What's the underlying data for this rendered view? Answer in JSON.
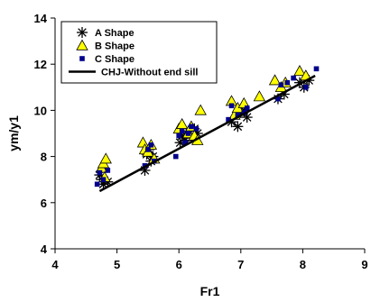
{
  "chart_data": {
    "type": "scatter",
    "xlabel": "Fr1",
    "ylabel": "ym/y1",
    "xlim": [
      4,
      9
    ],
    "ylim": [
      4,
      14
    ],
    "xticks": [
      4,
      5,
      6,
      7,
      8,
      9
    ],
    "yticks": [
      4,
      6,
      8,
      10,
      12,
      14
    ],
    "grid": false,
    "legend_position": "top-left",
    "series": [
      {
        "name": "A Shape",
        "marker": "asterisk",
        "color": "#000000",
        "points": [
          [
            4.72,
            7.2
          ],
          [
            4.75,
            7.0
          ],
          [
            4.78,
            6.8
          ],
          [
            4.85,
            6.9
          ],
          [
            5.45,
            7.4
          ],
          [
            5.48,
            8.1
          ],
          [
            5.52,
            8.3
          ],
          [
            5.55,
            7.8
          ],
          [
            5.58,
            8.0
          ],
          [
            6.02,
            8.6
          ],
          [
            6.05,
            8.9
          ],
          [
            6.1,
            8.7
          ],
          [
            6.15,
            9.1
          ],
          [
            6.2,
            8.8
          ],
          [
            6.25,
            9.2
          ],
          [
            6.3,
            9.0
          ],
          [
            6.85,
            9.5
          ],
          [
            6.95,
            9.3
          ],
          [
            7.0,
            9.9
          ],
          [
            7.05,
            10.0
          ],
          [
            7.1,
            9.7
          ],
          [
            7.6,
            10.5
          ],
          [
            7.7,
            10.7
          ],
          [
            7.95,
            11.2
          ],
          [
            8.02,
            11.0
          ],
          [
            8.1,
            11.3
          ]
        ]
      },
      {
        "name": "B Shape",
        "marker": "triangle",
        "color": "#ffff00",
        "points": [
          [
            4.75,
            7.5
          ],
          [
            4.78,
            7.7
          ],
          [
            4.82,
            7.9
          ],
          [
            4.8,
            7.1
          ],
          [
            5.42,
            8.6
          ],
          [
            5.45,
            8.3
          ],
          [
            5.5,
            8.2
          ],
          [
            5.55,
            8.5
          ],
          [
            5.6,
            7.9
          ],
          [
            6.0,
            9.2
          ],
          [
            6.05,
            9.4
          ],
          [
            6.15,
            9.0
          ],
          [
            6.2,
            9.3
          ],
          [
            6.25,
            8.9
          ],
          [
            6.3,
            8.7
          ],
          [
            6.35,
            10.0
          ],
          [
            6.85,
            10.4
          ],
          [
            6.9,
            9.8
          ],
          [
            6.95,
            10.1
          ],
          [
            7.05,
            10.3
          ],
          [
            7.3,
            10.6
          ],
          [
            7.55,
            11.3
          ],
          [
            7.65,
            11.0
          ],
          [
            7.72,
            11.2
          ],
          [
            7.95,
            11.7
          ],
          [
            8.05,
            11.5
          ]
        ]
      },
      {
        "name": "C Shape",
        "marker": "square",
        "color": "#00008b",
        "points": [
          [
            4.68,
            6.8
          ],
          [
            4.72,
            7.3
          ],
          [
            4.78,
            7.0
          ],
          [
            4.85,
            7.4
          ],
          [
            5.45,
            7.6
          ],
          [
            5.5,
            8.3
          ],
          [
            5.55,
            8.5
          ],
          [
            5.6,
            7.8
          ],
          [
            5.95,
            8.0
          ],
          [
            6.0,
            8.9
          ],
          [
            6.05,
            9.1
          ],
          [
            6.1,
            8.6
          ],
          [
            6.15,
            9.0
          ],
          [
            6.2,
            9.3
          ],
          [
            6.28,
            9.2
          ],
          [
            6.8,
            9.6
          ],
          [
            6.85,
            10.2
          ],
          [
            6.95,
            9.8
          ],
          [
            7.05,
            9.9
          ],
          [
            7.1,
            10.1
          ],
          [
            7.6,
            10.5
          ],
          [
            7.65,
            11.1
          ],
          [
            7.75,
            11.2
          ],
          [
            7.85,
            11.4
          ],
          [
            8.05,
            11.0
          ],
          [
            8.22,
            11.8
          ]
        ]
      },
      {
        "name": "CHJ-Without end sill",
        "marker": "line",
        "color": "#000000",
        "points": [
          [
            4.72,
            6.5
          ],
          [
            8.2,
            11.5
          ]
        ]
      }
    ]
  }
}
